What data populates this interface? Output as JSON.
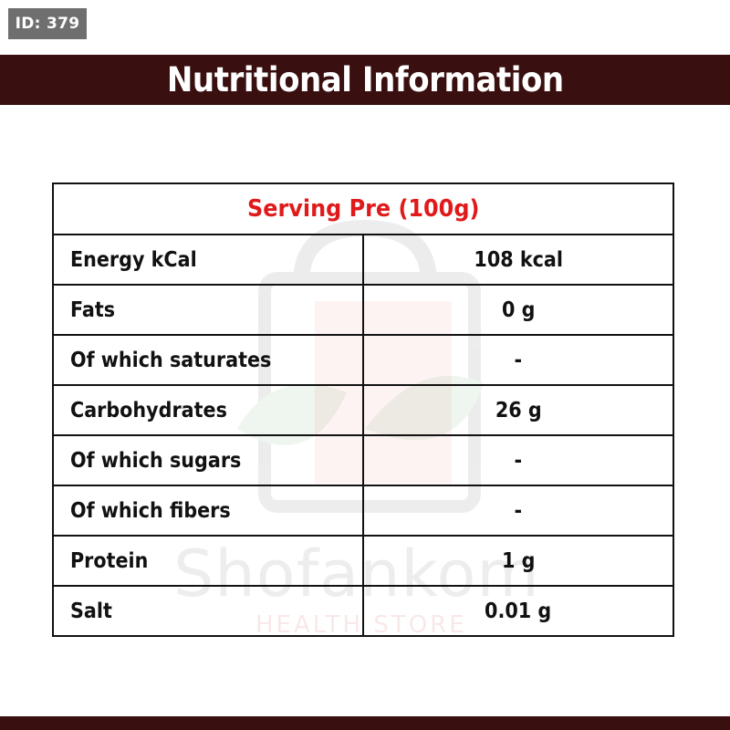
{
  "badge": {
    "id_label": "ID: 379"
  },
  "header": {
    "title": "Nutritional Information"
  },
  "watermark": {
    "brand": "Shofankom",
    "tagline": "HEALTH STORE"
  },
  "table": {
    "serving_label": "Serving Pre (100g)",
    "rows": [
      {
        "label": "Energy kCal",
        "value": "108 kcal"
      },
      {
        "label": "Fats",
        "value": "0 g"
      },
      {
        "label": "Of which saturates",
        "value": "-"
      },
      {
        "label": "Carbohydrates",
        "value": "26 g"
      },
      {
        "label": "Of which sugars",
        "value": "-"
      },
      {
        "label": "Of which fibers",
        "value": "-"
      },
      {
        "label": "Protein",
        "value": "1 g"
      },
      {
        "label": "Salt",
        "value": "0.01 g"
      }
    ]
  },
  "colors": {
    "header_band": "#3a0f0f",
    "serving_text": "#e01a1a",
    "badge_bg": "#6f6f6f"
  }
}
